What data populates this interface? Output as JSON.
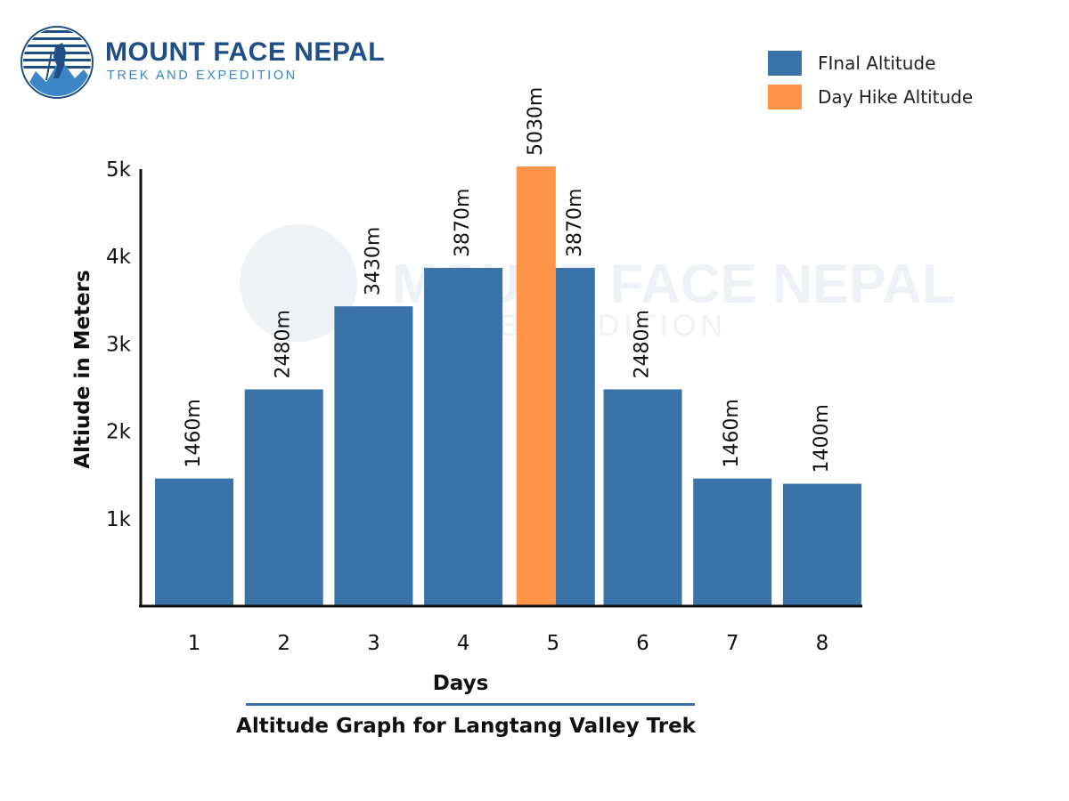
{
  "logo": {
    "name": "MOUNT FACE NEPAL",
    "tagline": "TREK AND EXPEDITION"
  },
  "watermark": {
    "name": "MOUNT FACE NEPAL",
    "tagline": "EXPEDITION"
  },
  "legend": [
    {
      "label": "FInal Altitude",
      "color": "#3a73a8"
    },
    {
      "label": "Day Hike Altitude",
      "color": "#fd9448"
    }
  ],
  "chart_data": {
    "type": "bar",
    "title": "Altitude Graph for Langtang Valley Trek",
    "xlabel": "Days",
    "ylabel": "Altiude in Meters",
    "categories": [
      "1",
      "2",
      "3",
      "4",
      "5",
      "6",
      "7",
      "8"
    ],
    "ylim": [
      0,
      5000
    ],
    "yticks": [
      1000,
      2000,
      3000,
      4000,
      5000
    ],
    "ytick_labels": [
      "1k",
      "2k",
      "3k",
      "4k",
      "5k"
    ],
    "grid": false,
    "legend_position": "top-right",
    "series": [
      {
        "name": "FInal Altitude",
        "color": "#3a73a8",
        "values": [
          1460,
          2480,
          3430,
          3870,
          3870,
          2480,
          1460,
          1400
        ],
        "labels": [
          "1460m",
          "2480m",
          "3430m",
          "3870m",
          "3870m",
          "2480m",
          "1460m",
          "1400m"
        ]
      },
      {
        "name": "Day Hike Altitude",
        "color": "#fd9448",
        "values": [
          null,
          null,
          null,
          null,
          5030,
          null,
          null,
          null
        ],
        "labels": [
          "",
          "",
          "",
          "",
          "5030m",
          "",
          "",
          ""
        ]
      }
    ]
  }
}
